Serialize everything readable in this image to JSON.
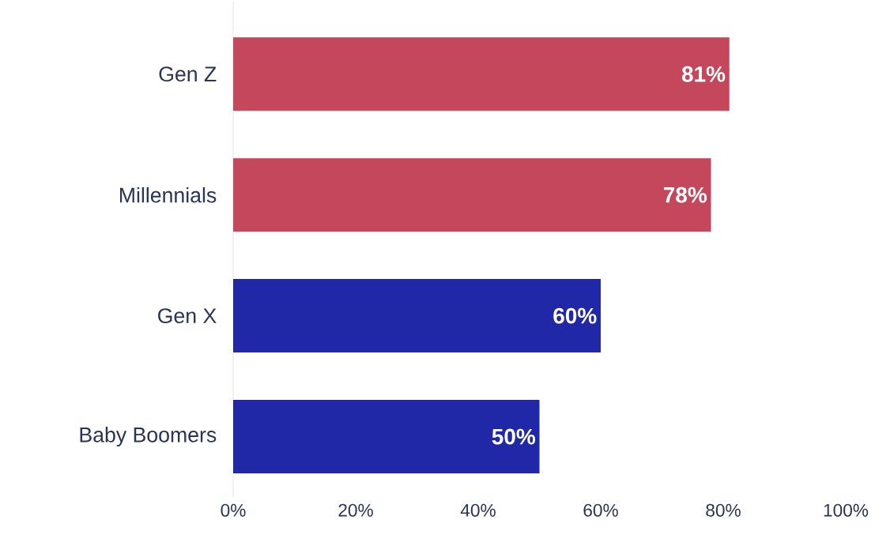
{
  "chart_data": {
    "type": "bar",
    "orientation": "horizontal",
    "categories": [
      "Gen Z",
      "Millennials",
      "Gen X",
      "Baby Boomers"
    ],
    "values": [
      81,
      78,
      60,
      50
    ],
    "colors": [
      "#c4475c",
      "#c4475c",
      "#2128a8",
      "#2128a8"
    ],
    "value_labels": [
      "81%",
      "78%",
      "60%",
      "50%"
    ],
    "xlim": [
      0,
      100
    ],
    "xticks": [
      {
        "value": 0,
        "label": "0%"
      },
      {
        "value": 20,
        "label": "20%"
      },
      {
        "value": 40,
        "label": "40%"
      },
      {
        "value": 60,
        "label": "60%"
      },
      {
        "value": 80,
        "label": "80%"
      },
      {
        "value": 100,
        "label": "100%"
      }
    ],
    "grid": false
  }
}
